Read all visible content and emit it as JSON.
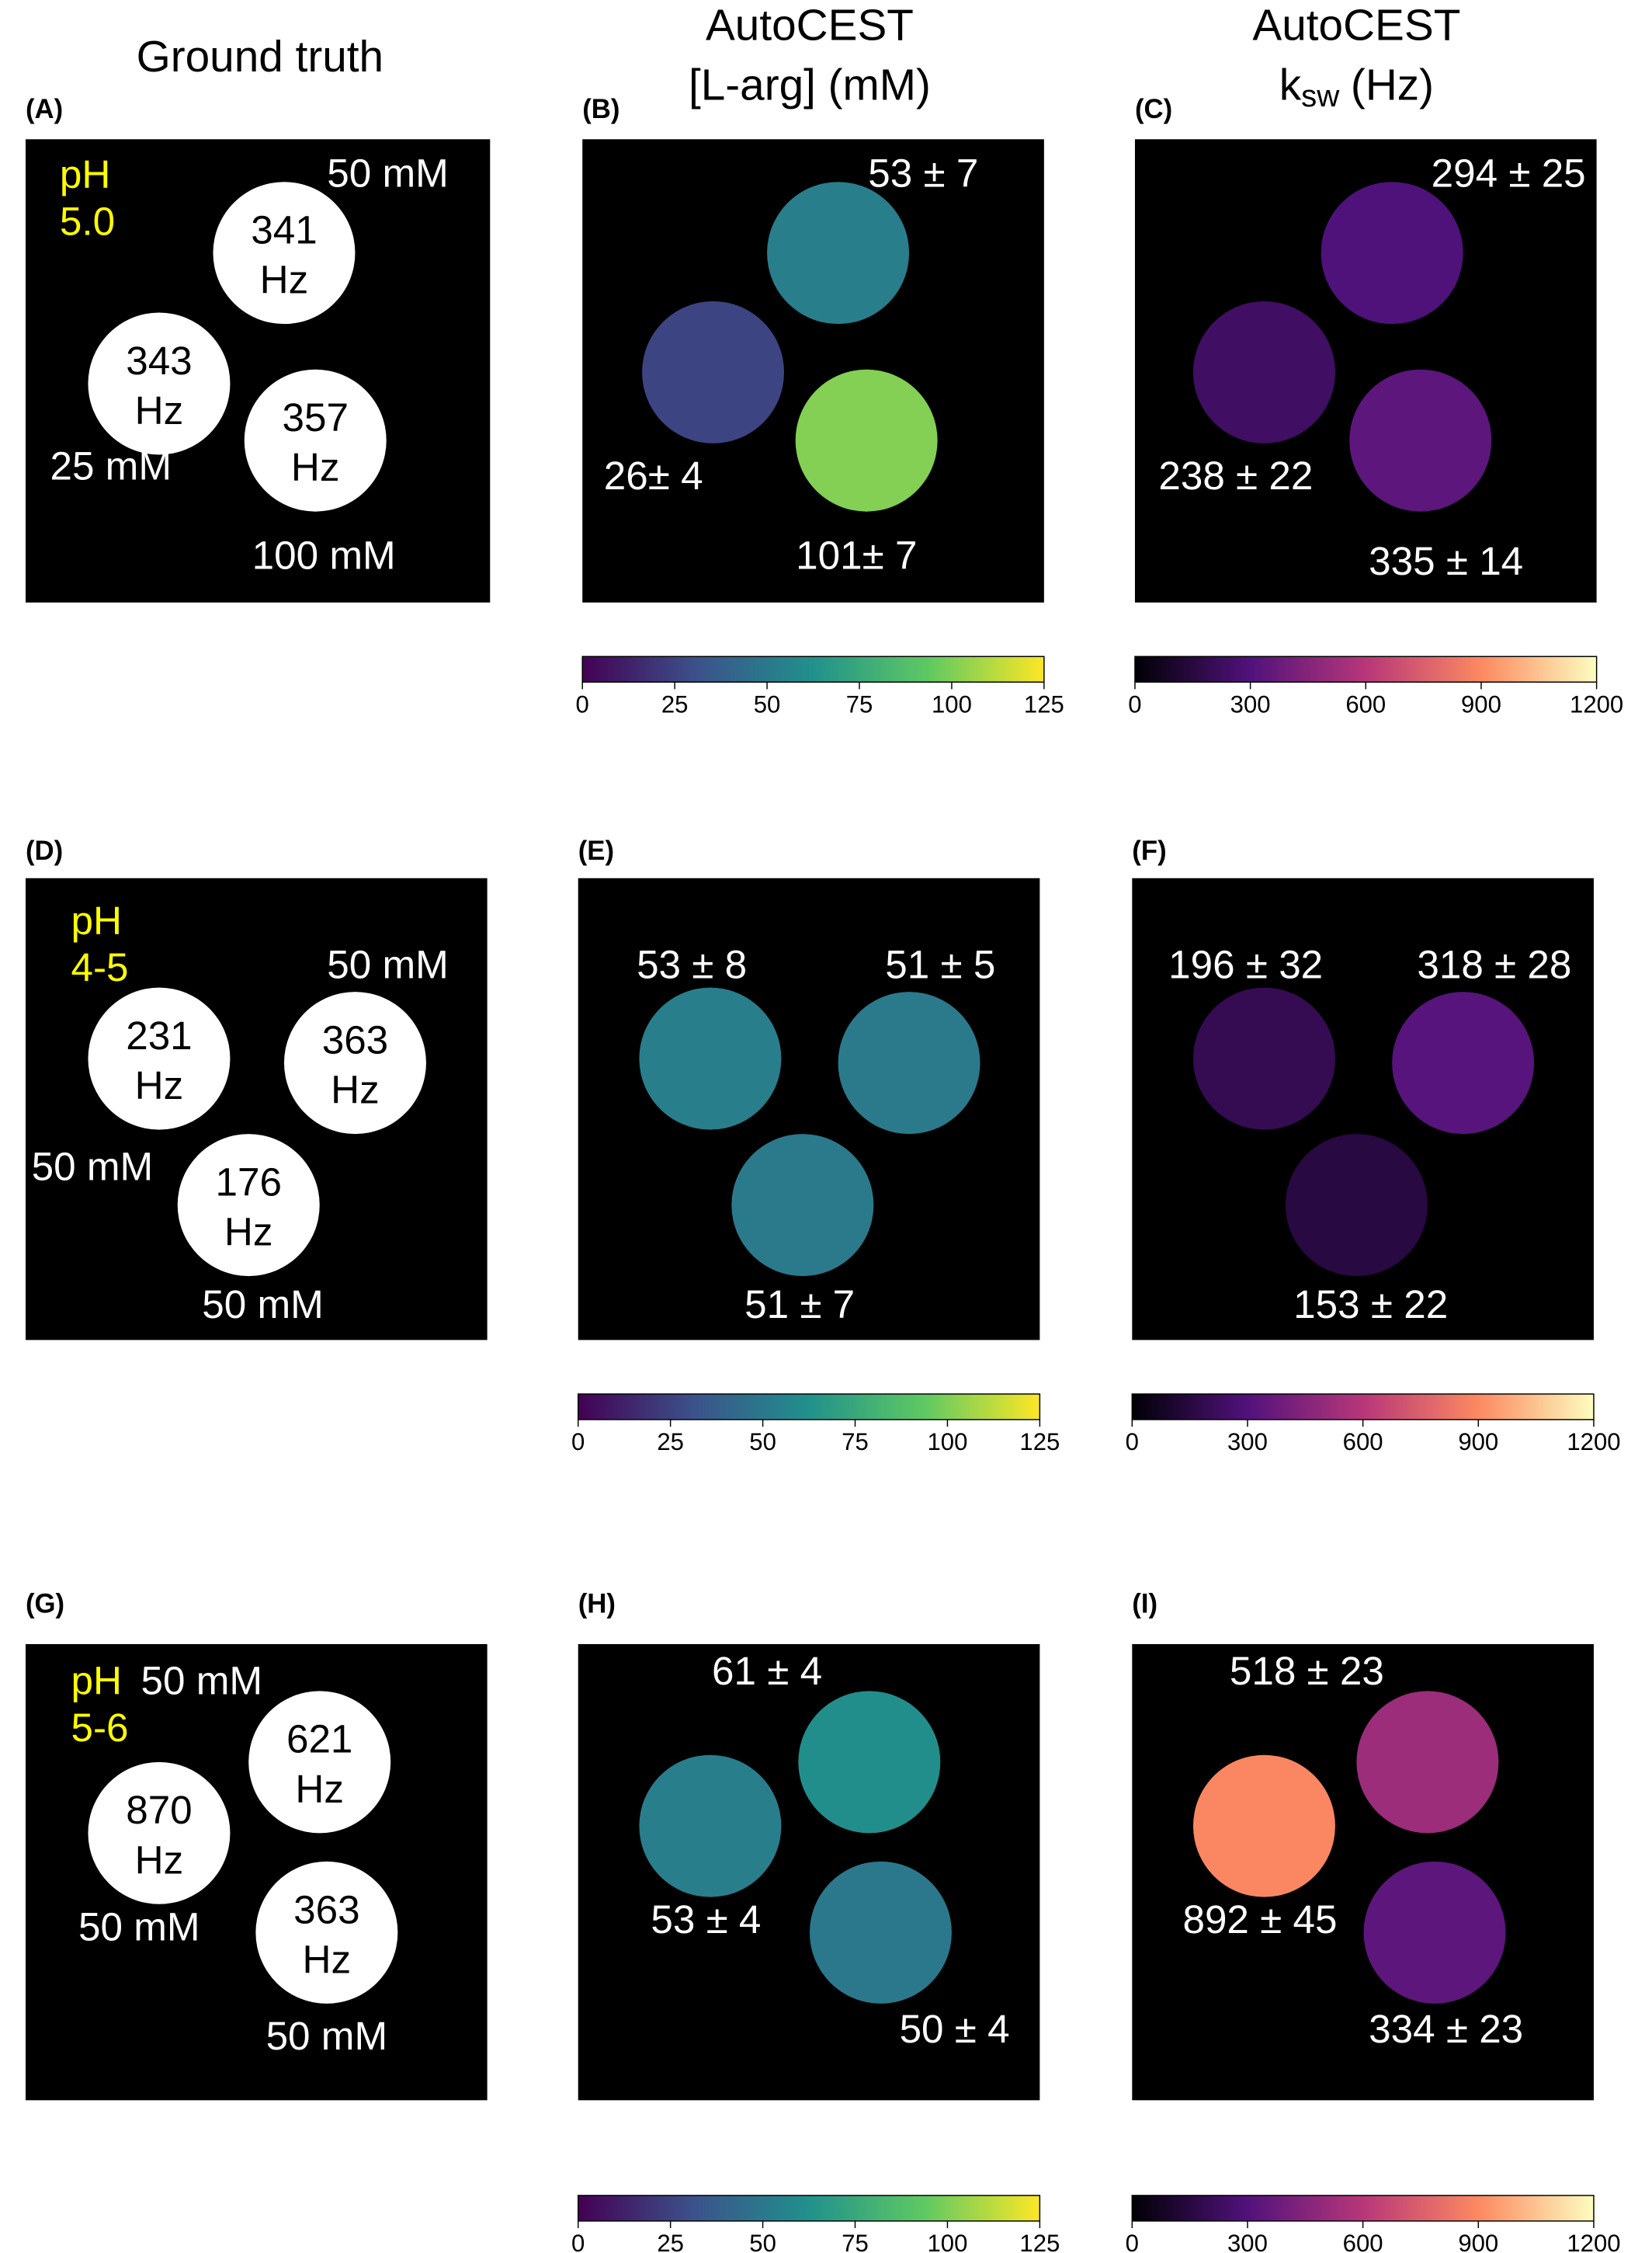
{
  "titles": {
    "ground_truth": "Ground truth",
    "conc": [
      "AutoCEST",
      "[L-arg] (mM)"
    ],
    "ksw": {
      "line1": "AutoCEST",
      "symbol": "k",
      "subscript": "sw",
      "unit": "(Hz)"
    }
  },
  "unit": "Hz",
  "rows": [
    {
      "ground_truth": {
        "label": "(A)",
        "ph": [
          "pH",
          "5.0"
        ],
        "concentrations": [
          "50 mM",
          "25 mM",
          "100 mM"
        ],
        "ksw": [
          341,
          343,
          357
        ]
      },
      "conc": {
        "label": "(B)",
        "phantoms": [
          {
            "mean": 53,
            "label": "53 ± 7"
          },
          {
            "mean": 26,
            "label": "26± 4"
          },
          {
            "mean": 101,
            "label": "101± 7"
          }
        ]
      },
      "ksw": {
        "label": "(C)",
        "phantoms": [
          {
            "mean": 294,
            "label": "294 ± 25"
          },
          {
            "mean": 238,
            "label": "238 ± 22"
          },
          {
            "mean": 335,
            "label": "335 ± 14"
          }
        ]
      }
    },
    {
      "ground_truth": {
        "label": "(D)",
        "ph": [
          "pH",
          "4-5"
        ],
        "concentrations": [
          "50 mM",
          "50 mM",
          "50 mM"
        ],
        "ksw": [
          231,
          363,
          176
        ]
      },
      "conc": {
        "label": "(E)",
        "phantoms": [
          {
            "mean": 53,
            "label": "53 ± 8"
          },
          {
            "mean": 51,
            "label": "51 ± 5"
          },
          {
            "mean": 51,
            "label": "51 ± 7"
          }
        ]
      },
      "ksw": {
        "label": "(F)",
        "phantoms": [
          {
            "mean": 196,
            "label": "196 ± 32"
          },
          {
            "mean": 318,
            "label": "318 ± 28"
          },
          {
            "mean": 153,
            "label": "153 ± 22"
          }
        ]
      }
    },
    {
      "ground_truth": {
        "label": "(G)",
        "ph": [
          "pH",
          "5-6"
        ],
        "concentrations": [
          "50 mM",
          "50 mM",
          "50 mM"
        ],
        "ksw": [
          621,
          870,
          363
        ]
      },
      "conc": {
        "label": "(H)",
        "phantoms": [
          {
            "mean": 61,
            "label": "61 ± 4"
          },
          {
            "mean": 53,
            "label": "53 ± 4"
          },
          {
            "mean": 50,
            "label": "50 ± 4"
          }
        ]
      },
      "ksw": {
        "label": "(I)",
        "phantoms": [
          {
            "mean": 518,
            "label": "518 ± 23"
          },
          {
            "mean": 892,
            "label": "892 ± 45"
          },
          {
            "mean": 334,
            "label": "334 ± 23"
          }
        ]
      }
    }
  ],
  "colorbars": {
    "conc": {
      "colormap": "viridis",
      "lim": [
        0,
        125
      ],
      "ticks": [
        0,
        25,
        50,
        75,
        100,
        125
      ]
    },
    "ksw": {
      "colormap": "magma",
      "lim": [
        0,
        1200
      ],
      "ticks": [
        0,
        300,
        600,
        900,
        1200
      ]
    }
  }
}
